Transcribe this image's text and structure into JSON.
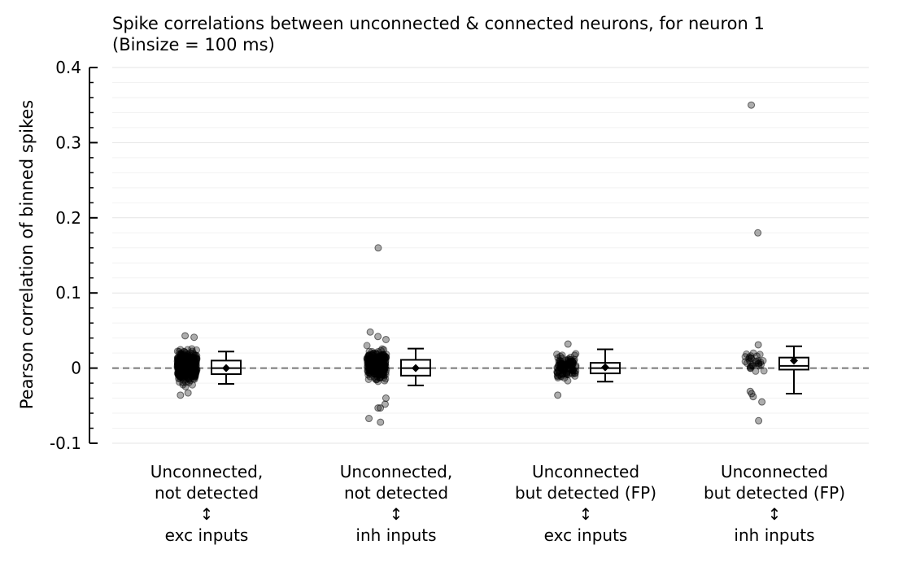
{
  "chart_data": {
    "type": "box-strip",
    "title_line1": "Spike correlations between unconnected & connected neurons, for neuron 1",
    "title_line2": "(Binsize = 100 ms)",
    "ylabel": "Pearson correlation of binned spikes",
    "ylim": [
      -0.1,
      0.4
    ],
    "yticks": [
      -0.1,
      0,
      0.1,
      0.2,
      0.3,
      0.4
    ],
    "ytick_labels": [
      "-0.1",
      "0",
      "0.1",
      "0.2",
      "0.3",
      "0.4"
    ],
    "zero_line": true,
    "grid": "horizontal",
    "categories": [
      {
        "label_lines": [
          "Unconnected,",
          "not detected",
          "↕",
          "exc inputs"
        ],
        "n_points": 420,
        "core_range": [
          -0.03,
          0.035
        ],
        "outliers": [
          0.043,
          0.041,
          -0.036,
          -0.033
        ],
        "box": {
          "whisker_low": -0.021,
          "q1": -0.008,
          "median": 0.0,
          "q3": 0.01,
          "whisker_high": 0.022,
          "mean": 0.0
        }
      },
      {
        "label_lines": [
          "Unconnected,",
          "not detected",
          "↕",
          "inh inputs"
        ],
        "n_points": 260,
        "core_range": [
          -0.028,
          0.035
        ],
        "outliers": [
          0.16,
          0.048,
          0.042,
          0.038,
          -0.048,
          -0.053,
          -0.053,
          -0.067,
          -0.072,
          -0.04
        ],
        "box": {
          "whisker_low": -0.023,
          "q1": -0.01,
          "median": 0.0,
          "q3": 0.011,
          "whisker_high": 0.026,
          "mean": 0.0
        }
      },
      {
        "label_lines": [
          "Unconnected",
          "but detected (FP)",
          "↕",
          "exc inputs"
        ],
        "n_points": 110,
        "core_range": [
          -0.024,
          0.028
        ],
        "outliers": [
          0.032,
          -0.036
        ],
        "box": {
          "whisker_low": -0.018,
          "q1": -0.007,
          "median": 0.0,
          "q3": 0.007,
          "whisker_high": 0.025,
          "mean": 0.001
        }
      },
      {
        "label_lines": [
          "Unconnected",
          "but detected (FP)",
          "↕",
          "inh inputs"
        ],
        "n_points": 30,
        "core_range": [
          -0.012,
          0.028
        ],
        "outliers": [
          0.35,
          0.18,
          0.031,
          -0.034,
          -0.031,
          -0.038,
          -0.045,
          -0.07
        ],
        "box": {
          "whisker_low": -0.034,
          "q1": -0.002,
          "median": 0.003,
          "q3": 0.014,
          "whisker_high": 0.029,
          "mean": 0.01
        }
      }
    ]
  }
}
